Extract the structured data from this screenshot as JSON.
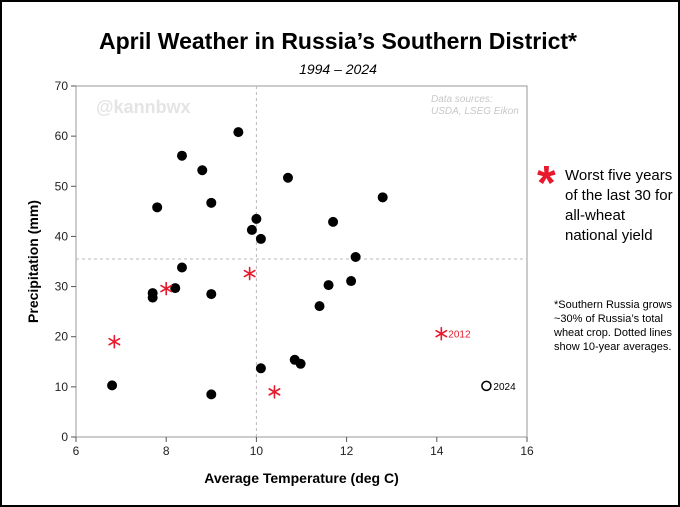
{
  "chart_data": {
    "type": "scatter",
    "title": "April Weather in Russia’s Southern District*",
    "subtitle": "1994 – 2024",
    "xlabel": "Average Temperature (deg C)",
    "ylabel": "Precipitation (mm)",
    "xlim": [
      6,
      16
    ],
    "ylim": [
      0,
      70
    ],
    "x_ticks": [
      6,
      8,
      10,
      12,
      14,
      16
    ],
    "y_ticks": [
      0,
      10,
      20,
      30,
      40,
      50,
      60,
      70
    ],
    "grid": false,
    "reference_lines": {
      "avg_temperature": 10.0,
      "avg_precipitation": 35.5
    },
    "watermark": "@kannbwx",
    "source": [
      "Data sources:",
      "USDA, LSEG Eikon"
    ],
    "series": [
      {
        "marker": "filled-circle",
        "color": "#000000",
        "points": [
          [
            6.8,
            10.3
          ],
          [
            7.7,
            28.7
          ],
          [
            7.7,
            27.8
          ],
          [
            7.8,
            45.8
          ],
          [
            8.2,
            29.7
          ],
          [
            8.35,
            56.1
          ],
          [
            8.35,
            33.8
          ],
          [
            8.8,
            53.2
          ],
          [
            9.0,
            46.7
          ],
          [
            9.0,
            28.5
          ],
          [
            9.0,
            8.5
          ],
          [
            9.6,
            60.8
          ],
          [
            9.9,
            41.3
          ],
          [
            10.0,
            43.5
          ],
          [
            10.1,
            39.5
          ],
          [
            10.1,
            13.7
          ],
          [
            10.7,
            51.7
          ],
          [
            10.85,
            15.4
          ],
          [
            10.98,
            14.6
          ],
          [
            11.4,
            26.1
          ],
          [
            11.6,
            30.3
          ],
          [
            11.7,
            42.9
          ],
          [
            12.1,
            31.1
          ],
          [
            12.2,
            35.9
          ],
          [
            12.8,
            47.8
          ]
        ]
      },
      {
        "name": "Worst five years of the last 30 for all-wheat national yield",
        "marker": "asterisk",
        "color": "#e8192c",
        "points": [
          [
            6.85,
            19.0
          ],
          [
            8.0,
            29.6
          ],
          [
            9.85,
            32.6
          ],
          [
            10.4,
            9.0
          ],
          [
            14.1,
            20.6
          ]
        ],
        "labels": [
          "",
          "",
          "",
          "",
          "2012"
        ]
      },
      {
        "marker": "open-circle",
        "color": "#000000",
        "points": [
          [
            15.1,
            10.2
          ]
        ],
        "labels": [
          "2024"
        ]
      }
    ],
    "legend_placement": "right",
    "footnote": "*Southern Russia grows ~30% of Russia’s total wheat crop. Dotted lines show 10-year averages."
  },
  "legend": {
    "symbol": "*",
    "text": "Worst five years of the last 30 for all-wheat national yield"
  },
  "note": "*Southern Russia grows ~30% of Russia’s total wheat crop. Dotted lines show 10-year averages."
}
